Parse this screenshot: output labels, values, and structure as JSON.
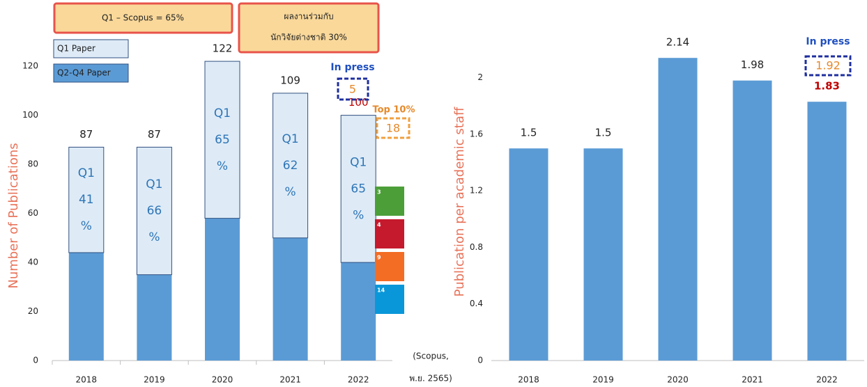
{
  "chart_data": [
    {
      "type": "bar",
      "stacked": true,
      "ylabel": "Number of Publications",
      "categories": [
        "2018",
        "2019",
        "2020",
        "2021",
        "2022"
      ],
      "series": [
        {
          "name": "Q2-Q4 Paper",
          "color": "#5b9bd5",
          "values": [
            44,
            35,
            58,
            50,
            40
          ]
        },
        {
          "name": "Q1 Paper",
          "color": "#deebf7",
          "values": [
            43,
            52,
            64,
            59,
            60
          ]
        }
      ],
      "segment_labels": [
        [
          "Q1",
          "41",
          "%"
        ],
        [
          "Q1",
          "66",
          "%"
        ],
        [
          "Q1",
          "65",
          "%"
        ],
        [
          "Q1",
          "62",
          "%"
        ],
        [
          "Q1",
          "65",
          "%"
        ]
      ],
      "total_labels": [
        87,
        87,
        122,
        109,
        100
      ],
      "ylim": [
        0,
        126
      ],
      "yticks": [
        0,
        20,
        40,
        60,
        80,
        100,
        120
      ],
      "note_scopus": "Q1 – Scopus = 65%",
      "note_international": [
        "ผลงานร่วมกับ",
        "นักวิจัยต่างชาติ 30%"
      ],
      "in_press": "In press",
      "in_press_count": 5,
      "top10_label": "Top 10%",
      "top10_count": 18,
      "sdg_icons": [
        "3",
        "4",
        "9",
        "14"
      ],
      "source": [
        "(Scopus,",
        "พ.ย. 2565)"
      ]
    },
    {
      "type": "bar",
      "ylabel": "Publication per academic staff",
      "categories": [
        "2018",
        "2019",
        "2020",
        "2021",
        "2022"
      ],
      "color": "#5b9bd5",
      "values": [
        1.5,
        1.5,
        2.14,
        1.98,
        1.83
      ],
      "ylim": [
        0,
        2.2
      ],
      "yticks": [
        0,
        0.4,
        0.8,
        1.2,
        1.6,
        2
      ],
      "in_press": "In press",
      "in_press_value": 1.92
    }
  ]
}
